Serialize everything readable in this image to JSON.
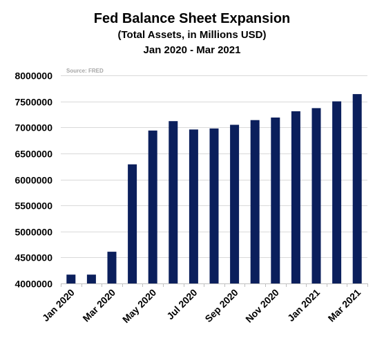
{
  "chart_data": {
    "type": "bar",
    "title": "Fed Balance Sheet Expansion",
    "subtitle_lines": [
      "(Total Assets, in Millions USD)",
      "Jan 2020 - Mar 2021"
    ],
    "source": "Source:  FRED",
    "categories": [
      "Jan 2020",
      "Feb 2020",
      "Mar 2020",
      "Apr 2020",
      "May 2020",
      "Jun 2020",
      "Jul 2020",
      "Aug 2020",
      "Sep 2020",
      "Oct 2020",
      "Nov 2020",
      "Dec 2020",
      "Jan 2021",
      "Feb 2021",
      "Mar 2021"
    ],
    "x_tick_labels": [
      "Jan 2020",
      "",
      "Mar 2020",
      "",
      "May 2020",
      "",
      "Jul 2020",
      "",
      "Sep 2020",
      "",
      "Nov 2020",
      "",
      "Jan 2021",
      "",
      "Mar 2021"
    ],
    "values": [
      4170000,
      4170000,
      4610000,
      6290000,
      6940000,
      7120000,
      6960000,
      6980000,
      7050000,
      7140000,
      7190000,
      7310000,
      7370000,
      7500000,
      7640000
    ],
    "ylim": [
      4000000,
      8000000
    ],
    "yticks": [
      4000000,
      4500000,
      5000000,
      5500000,
      6000000,
      6500000,
      7000000,
      7500000,
      8000000
    ],
    "grid": true,
    "legend": "none",
    "bar_color": "#0b1f5c",
    "grid_color": "#d9d9d9"
  }
}
